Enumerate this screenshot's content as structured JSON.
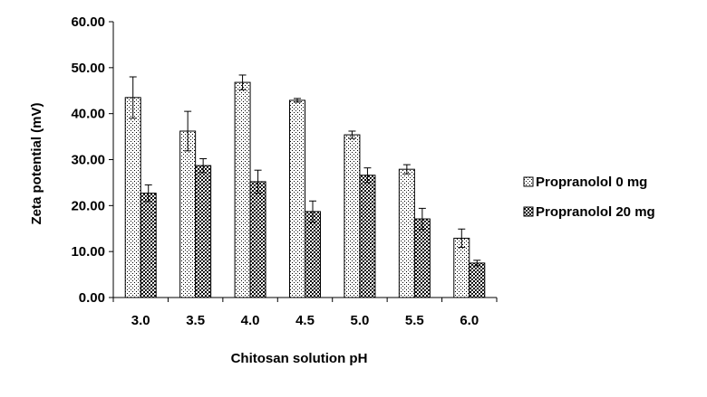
{
  "chart_data": {
    "type": "bar",
    "title": "",
    "xlabel": "Chitosan solution pH",
    "ylabel": "Zeta potential (mV)",
    "ylim": [
      0,
      60
    ],
    "ytick_step": 10,
    "ytick_labels": [
      "0.00",
      "10.00",
      "20.00",
      "30.00",
      "40.00",
      "50.00",
      "60.00"
    ],
    "categories": [
      "3.0",
      "3.5",
      "4.0",
      "4.5",
      "5.0",
      "5.5",
      "6.0"
    ],
    "series": [
      {
        "name": "Propranolol 0 mg",
        "pattern": "dots",
        "values": [
          43.5,
          36.2,
          46.8,
          42.9,
          35.4,
          27.9,
          12.9
        ],
        "errors": [
          4.5,
          4.3,
          1.6,
          0.4,
          0.8,
          1.0,
          2.0
        ]
      },
      {
        "name": "Propranolol 20 mg",
        "pattern": "checker",
        "values": [
          22.7,
          28.7,
          25.2,
          18.7,
          26.6,
          17.1,
          7.5
        ],
        "errors": [
          1.8,
          1.5,
          2.5,
          2.3,
          1.6,
          2.3,
          0.6
        ]
      }
    ],
    "grid": false,
    "legend_position": "right"
  }
}
